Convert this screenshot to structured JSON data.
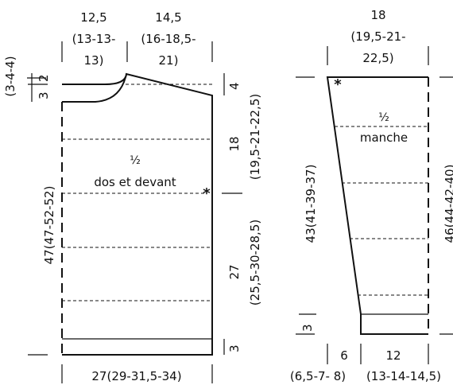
{
  "body_piece": {
    "top_left_width": "12,5",
    "top_left_width_sizes": [
      "(13-13-",
      "13)"
    ],
    "top_right_width": "14,5",
    "top_right_width_sizes": [
      "(16-18,5-",
      "21)"
    ],
    "half_label": "½",
    "piece_name": "dos et devant",
    "left_small_3": "3",
    "left_small_2": "2",
    "left_small_sizes": "(3-4-4)",
    "left_total": "47(47-52-52)",
    "right_4": "4",
    "right_18": "18",
    "right_18_sizes": "(19,5-21-22,5)",
    "right_27": "27",
    "right_27_sizes": "(25,5-30-28,5)",
    "right_3": "3",
    "bottom_width": "27(29-31,5-34)",
    "star": "*"
  },
  "sleeve_piece": {
    "top_width": "18",
    "top_width_sizes": [
      "(19,5-21-",
      "22,5)"
    ],
    "half_label": "½",
    "piece_name": "manche",
    "left_total": "43(41-39-37)",
    "right_total": "46(44-42-40)",
    "left_small_3": "3",
    "bottom_left": "6",
    "bottom_left_sizes": "(6,5-7- 8)",
    "bottom_right": "12",
    "bottom_right_sizes": "(13-14-14,5)",
    "star": "*"
  }
}
